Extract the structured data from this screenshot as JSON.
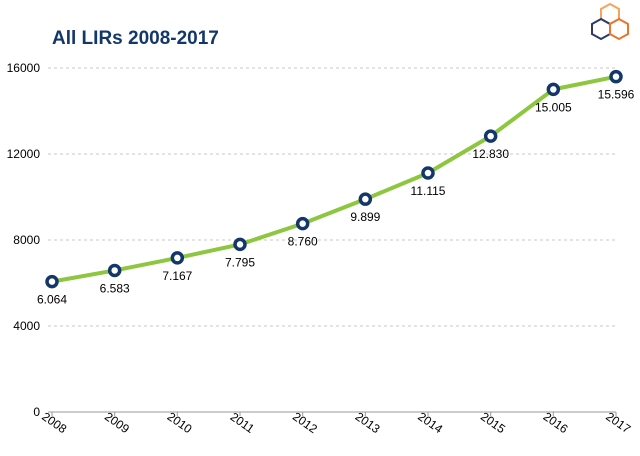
{
  "chart_data": {
    "type": "line",
    "title": "All LIRs 2008-2017",
    "xlabel": "",
    "ylabel": "",
    "categories": [
      "2008",
      "2009",
      "2010",
      "2011",
      "2012",
      "2013",
      "2014",
      "2015",
      "2016",
      "2017"
    ],
    "series": [
      {
        "values": [
          6064,
          6583,
          7167,
          7795,
          8760,
          9899,
          11115,
          12830,
          15005,
          15596
        ],
        "labels": [
          "6.064",
          "6.583",
          "7.167",
          "7.795",
          "8.760",
          "9.899",
          "11.115",
          "12.830",
          "15.005",
          "15.596"
        ]
      }
    ],
    "yticks": [
      "0",
      "4000",
      "8000",
      "12000",
      "16000"
    ],
    "ylim": [
      0,
      16000
    ],
    "grid": "horizontal dashed",
    "line_color": "#8dc63f",
    "marker_color": "#14376b"
  },
  "colors": {
    "title": "#14376b",
    "logo": [
      "#f7a35c",
      "#e8772e",
      "#2b3a67"
    ]
  },
  "logo_icon": "hexagon-cluster-logo"
}
